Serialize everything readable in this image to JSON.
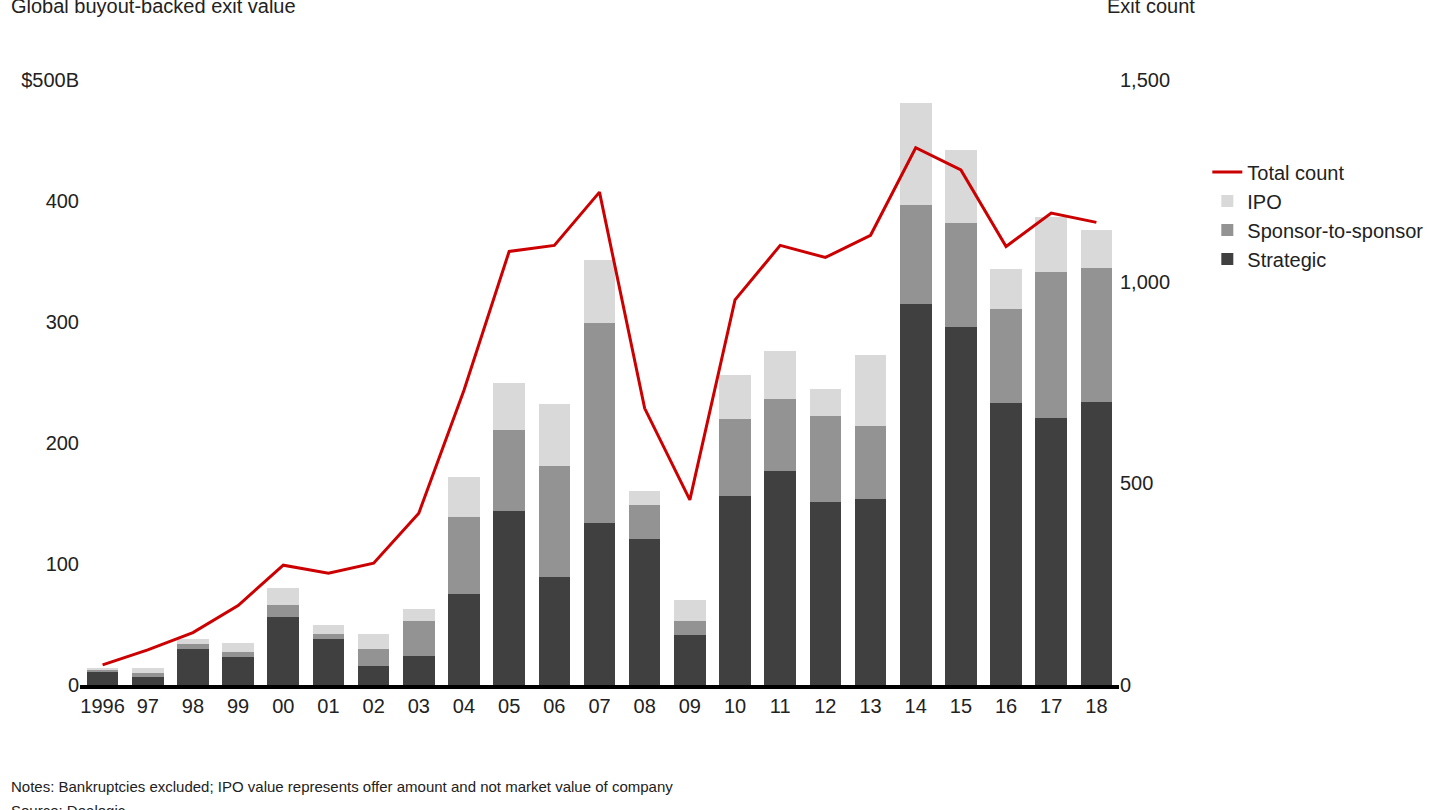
{
  "chart_data": {
    "type": "bar",
    "stacked": true,
    "ylabel": "Global buyout-backed exit value",
    "y2label": "Exit count",
    "notes": "Notes: Bankruptcies excluded; IPO value represents offer amount and not market value of company",
    "source": "Source: Dealogic",
    "categories": [
      "1996",
      "97",
      "98",
      "99",
      "00",
      "01",
      "02",
      "03",
      "04",
      "05",
      "06",
      "07",
      "08",
      "09",
      "10",
      "11",
      "12",
      "13",
      "14",
      "15",
      "16",
      "17",
      "18"
    ],
    "series": [
      {
        "name": "Strategic",
        "type": "bar",
        "color": "#404040",
        "values": [
          11,
          7,
          30,
          23,
          56,
          38,
          16,
          24,
          75,
          144,
          89,
          134,
          121,
          41,
          156,
          177,
          151,
          154,
          315,
          296,
          233,
          221,
          234
        ]
      },
      {
        "name": "Sponsor-to-sponsor",
        "type": "bar",
        "color": "#939393",
        "values": [
          1,
          3,
          4,
          4,
          10,
          4,
          14,
          29,
          64,
          67,
          92,
          165,
          28,
          12,
          64,
          59,
          71,
          60,
          82,
          86,
          78,
          120,
          111
        ]
      },
      {
        "name": "IPO",
        "type": "bar",
        "color": "#d9d9d9",
        "values": [
          2,
          4,
          4,
          8,
          14,
          8,
          12,
          10,
          33,
          39,
          51,
          52,
          11,
          17,
          36,
          40,
          23,
          59,
          84,
          60,
          33,
          46,
          31
        ]
      },
      {
        "name": "Total count",
        "type": "line",
        "axis": "y2",
        "color": "#cc0000",
        "values": [
          50,
          87,
          130,
          197,
          297,
          277,
          302,
          426,
          731,
          1075,
          1090,
          1222,
          686,
          459,
          955,
          1090,
          1060,
          1115,
          1332,
          1277,
          1087,
          1170,
          1147
        ]
      }
    ],
    "ylim": [
      0,
      500
    ],
    "yticks": [
      0,
      100,
      200,
      300,
      400,
      {
        "value": 500,
        "label": "$500B"
      }
    ],
    "y2lim": [
      0,
      1500
    ],
    "y2ticks": [
      0,
      500,
      {
        "value": 1000,
        "label": "1,000"
      },
      {
        "value": 1500,
        "label": "1,500"
      }
    ],
    "grid": false,
    "legend": "right"
  }
}
